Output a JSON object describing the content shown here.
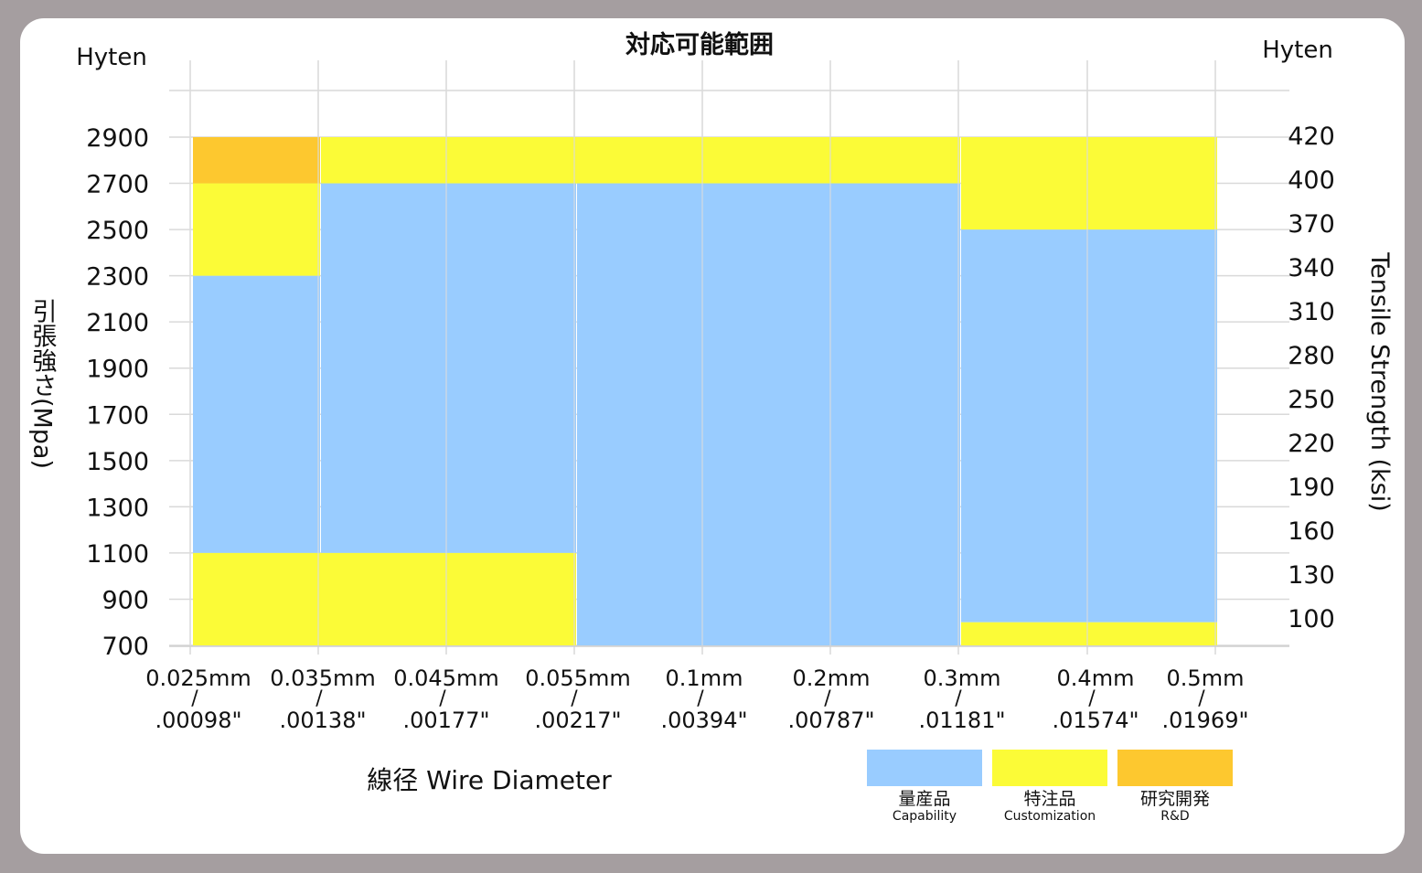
{
  "chart_data": {
    "type": "heatmap",
    "title": "対応可能範囲",
    "left_corner_label": "Hyten",
    "right_corner_label": "Hyten",
    "xlabel": "線径 Wire Diameter",
    "ylabel_left": "引張強さ(Mpa)",
    "ylabel_right": "Tensile Strength (ksi)",
    "x_ticks": [
      {
        "mm": "0.025mm",
        "sep": "/",
        "inch": ".00098\""
      },
      {
        "mm": "0.035mm",
        "sep": "/",
        "inch": ".00138\""
      },
      {
        "mm": "0.045mm",
        "sep": "/",
        "inch": ".00177\""
      },
      {
        "mm": "0.055mm",
        "sep": "/",
        "inch": ".00217\""
      },
      {
        "mm": "0.1mm",
        "sep": "/",
        "inch": ".00394\""
      },
      {
        "mm": "0.2mm",
        "sep": "/",
        "inch": ".00787\""
      },
      {
        "mm": "0.3mm",
        "sep": "/",
        "inch": ".01181\""
      },
      {
        "mm": "0.4mm",
        "sep": "/",
        "inch": ".01574\""
      },
      {
        "mm": "0.5mm",
        "sep": "/",
        "inch": ".01969\""
      }
    ],
    "y_ticks_left": [
      "2900",
      "2700",
      "2500",
      "2300",
      "2100",
      "1900",
      "1700",
      "1500",
      "1300",
      "1100",
      "900",
      "700"
    ],
    "y_ticks_right": [
      "420",
      "400",
      "370",
      "340",
      "310",
      "280",
      "250",
      "220",
      "190",
      "160",
      "130",
      "100"
    ],
    "ylim": [
      700,
      2900
    ],
    "grid": true,
    "categories": [
      {
        "key": "capability",
        "label": "量産品",
        "sublabel": "Capability",
        "color": "#99ccff"
      },
      {
        "key": "customization",
        "label": "特注品",
        "sublabel": "Customization",
        "color": "#fbfb37"
      },
      {
        "key": "rnd",
        "label": "研究開発",
        "sublabel": "R&D",
        "color": "#fdc82f"
      }
    ],
    "regions": [
      {
        "category": "capability",
        "x_from": "0.025mm",
        "x_to": "0.035mm",
        "y_from": 1100,
        "y_to": 2300
      },
      {
        "category": "capability",
        "x_from": "0.035mm",
        "x_to": "0.055mm",
        "y_from": 1100,
        "y_to": 2700
      },
      {
        "category": "capability",
        "x_from": "0.055mm",
        "x_to": "0.3mm",
        "y_from": 700,
        "y_to": 2700
      },
      {
        "category": "capability",
        "x_from": "0.3mm",
        "x_to": "0.5mm",
        "y_from": 800,
        "y_to": 2500
      },
      {
        "category": "customization",
        "x_from": "0.025mm",
        "x_to": "0.035mm",
        "y_from": 2300,
        "y_to": 2700
      },
      {
        "category": "customization",
        "x_from": "0.035mm",
        "x_to": "0.3mm",
        "y_from": 2700,
        "y_to": 2900
      },
      {
        "category": "customization",
        "x_from": "0.3mm",
        "x_to": "0.5mm",
        "y_from": 2500,
        "y_to": 2900
      },
      {
        "category": "customization",
        "x_from": "0.025mm",
        "x_to": "0.055mm",
        "y_from": 700,
        "y_to": 1100
      },
      {
        "category": "customization",
        "x_from": "0.3mm",
        "x_to": "0.5mm",
        "y_from": 700,
        "y_to": 800
      },
      {
        "category": "rnd",
        "x_from": "0.025mm",
        "x_to": "0.035mm",
        "y_from": 2700,
        "y_to": 2900
      }
    ]
  }
}
